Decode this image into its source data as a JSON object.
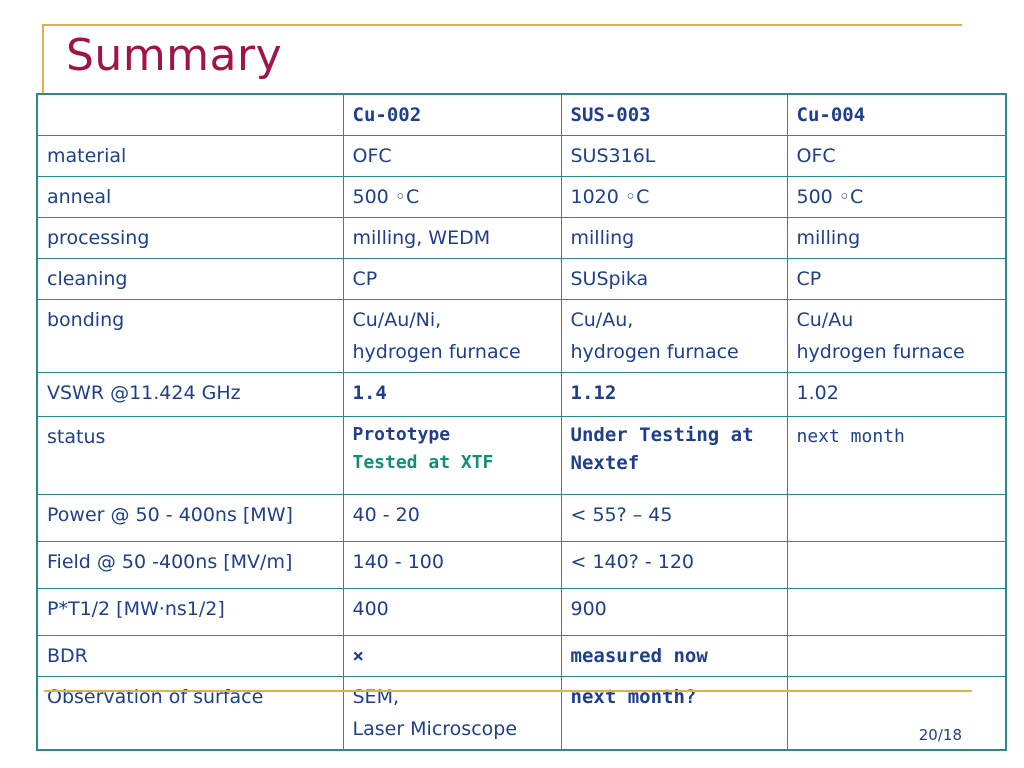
{
  "title": "Summary",
  "slide_number": "20/18",
  "columns": {
    "c1": "Cu-002",
    "c2": "SUS-003",
    "c3": "Cu-004"
  },
  "rows": {
    "material": {
      "label": "material",
      "c1": "OFC",
      "c2": "SUS316L",
      "c3": "OFC"
    },
    "anneal": {
      "label": "anneal",
      "c1": "500 ◦C",
      "c2": "1020 ◦C",
      "c3": "500 ◦C"
    },
    "processing": {
      "label": "processing",
      "c1": "milling, WEDM",
      "c2": "milling",
      "c3": "milling"
    },
    "cleaning": {
      "label": "cleaning",
      "c1": "CP",
      "c2": "SUSpika",
      "c3": "CP"
    },
    "bonding": {
      "label": "bonding",
      "c1a": "Cu/Au/Ni,",
      "c1b": "hydrogen furnace",
      "c2a": "Cu/Au,",
      "c2b": "hydrogen furnace",
      "c3a": "Cu/Au",
      "c3b": "hydrogen furnace"
    },
    "vswr": {
      "label": "VSWR @11.424 GHz",
      "c1": "1.4",
      "c2": "1.12",
      "c3": "1.02"
    },
    "status": {
      "label": "status",
      "c1a": "Prototype",
      "c1b": "Tested at XTF",
      "c2": "Under Testing at Nextef",
      "c3": "next month"
    },
    "power": {
      "label": "Power @ 50 - 400ns [MW]",
      "c1": "40 - 20",
      "c2": "< 55? – 45",
      "c3": ""
    },
    "field": {
      "label": "Field @ 50 -400ns [MV/m]",
      "c1": "140 - 100",
      "c2": "< 140? - 120",
      "c3": ""
    },
    "pt": {
      "label": "P*T1/2 [MW·ns1/2]",
      "c1": "400",
      "c2": "900",
      "c3": ""
    },
    "bdr": {
      "label": "BDR",
      "c1": "×",
      "c2": "measured now",
      "c3": ""
    },
    "surface": {
      "label": "Observation of surface",
      "c1a": "SEM,",
      "c1b": "Laser Microscope",
      "c2": "next month?",
      "c3": ""
    }
  }
}
